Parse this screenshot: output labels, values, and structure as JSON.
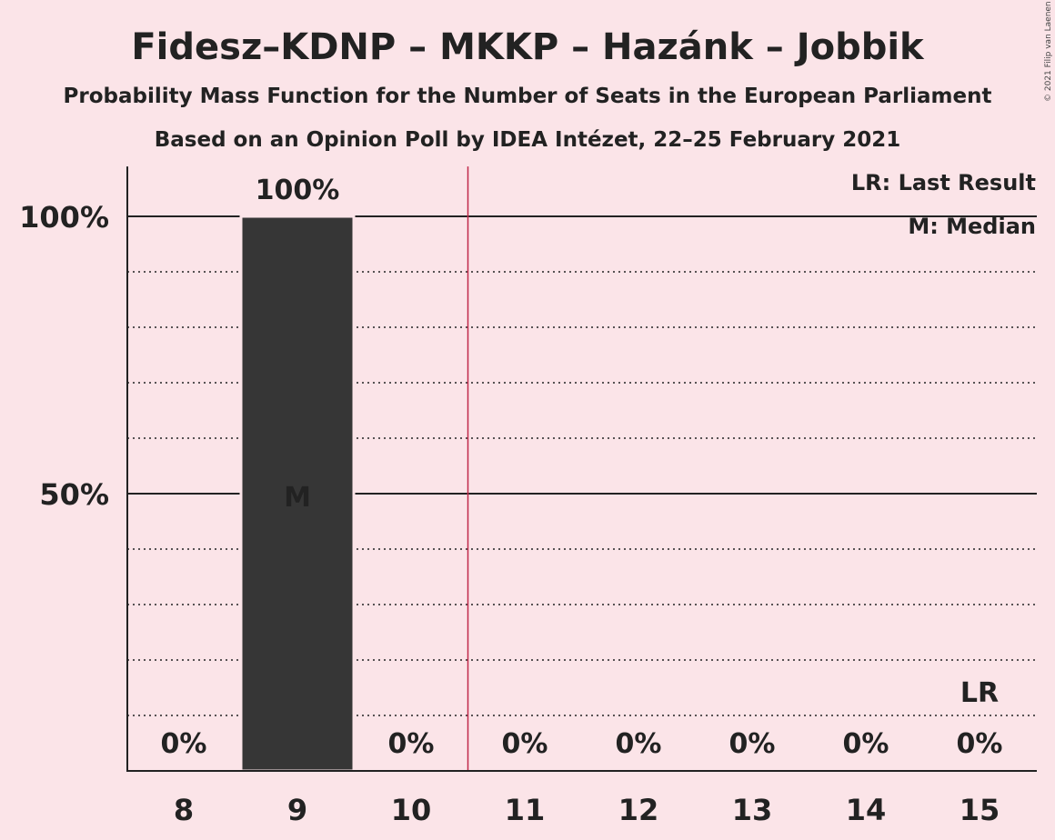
{
  "title": "Fidesz–KDNP – MKKP – Hazánk – Jobbik",
  "subtitle1": "Probability Mass Function for the Number of Seats in the European Parliament",
  "subtitle2": "Based on an Opinion Poll by IDEA Intézet, 22–25 February 2021",
  "copyright": "© 2021 Filip van Laenen",
  "legend": {
    "last_result": "LR: Last Result",
    "median": "M: Median"
  },
  "colors": {
    "background": "#fbe4e8",
    "bar": "#363636",
    "last_result_line": "#c0294a",
    "text": "#222222"
  },
  "chart_data": {
    "type": "bar",
    "categories": [
      "8",
      "9",
      "10",
      "11",
      "12",
      "13",
      "14",
      "15"
    ],
    "values": [
      0,
      100,
      0,
      0,
      0,
      0,
      0,
      0
    ],
    "value_labels": [
      "0%",
      "100%",
      "0%",
      "0%",
      "0%",
      "0%",
      "0%",
      "0%"
    ],
    "ylim": [
      0,
      109
    ],
    "y_ticks": [
      {
        "value": 50,
        "label": "50%"
      },
      {
        "value": 100,
        "label": "100%"
      }
    ],
    "minor_gridlines": [
      10,
      20,
      30,
      40,
      60,
      70,
      80,
      90
    ],
    "median_category": "9",
    "median_marker": "M",
    "last_result_category": "15",
    "last_result_marker": "LR",
    "threshold_between": [
      "10",
      "11"
    ]
  }
}
